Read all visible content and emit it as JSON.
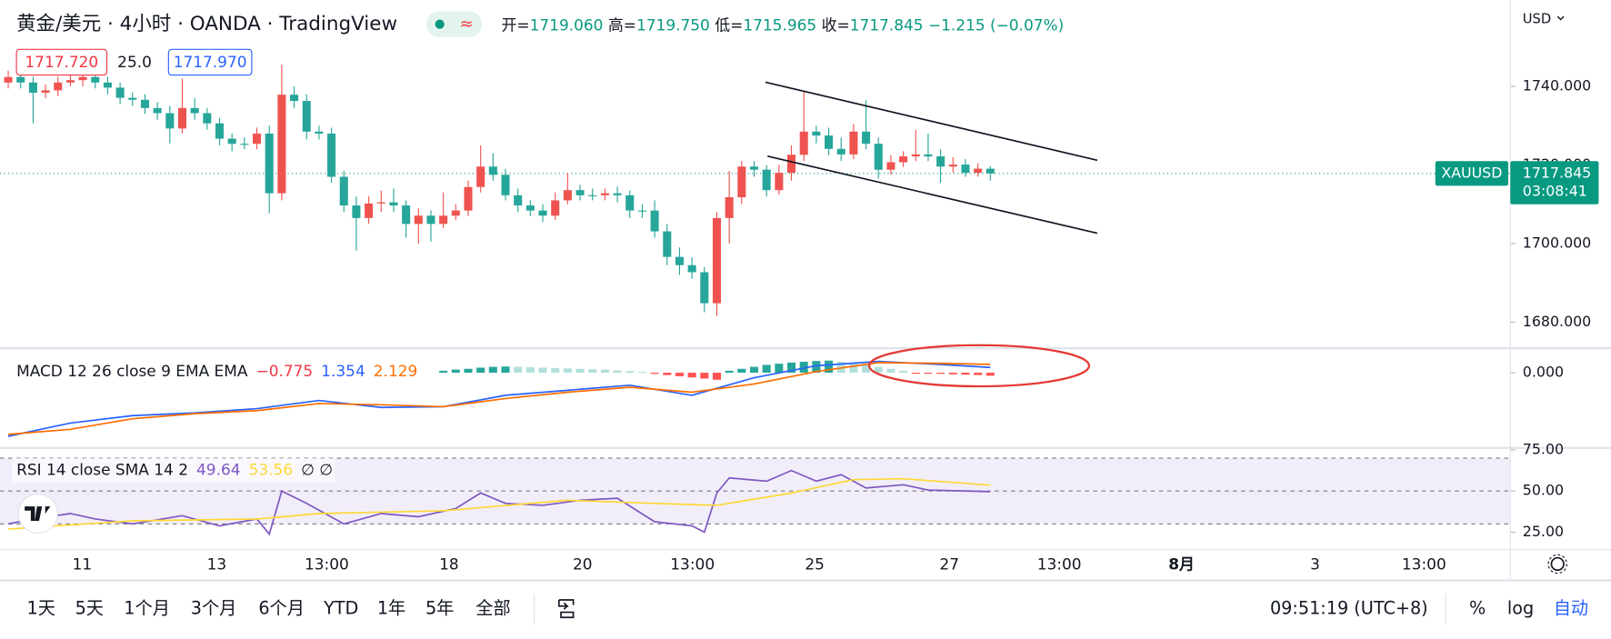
{
  "header": {
    "symbol": "黄金/美元 · 4小时 · OANDA · TradingView",
    "status_icon": "≈",
    "ohlc": [
      {
        "label": "开=",
        "value": "1719.060"
      },
      {
        "label": "高=",
        "value": "1719.750"
      },
      {
        "label": "低=",
        "value": "1715.965"
      },
      {
        "label": "收=",
        "value": "1717.845"
      }
    ],
    "change": "−1.215 (−0.07%)",
    "bid": "1717.720",
    "spread": "25.0",
    "ask": "1717.970",
    "currency": "USD"
  },
  "chart_data": [
    {
      "type": "candlestick",
      "open": [
        1741.0,
        1742.4,
        1741.0,
        1738.4,
        1739.0,
        1741.0,
        1741.6,
        1742.4,
        1741.0,
        1739.7,
        1737.1,
        1736.6,
        1734.5,
        1733.2,
        1729.3,
        1734.5,
        1733.2,
        1730.6,
        1726.7,
        1725.4,
        1725.4,
        1728.0,
        1712.8,
        1737.9,
        1736.3,
        1728.5,
        1728.0,
        1717.0,
        1709.7,
        1706.5,
        1710.2,
        1710.5,
        1709.7,
        1705.0,
        1707.1,
        1705.0,
        1707.1,
        1708.4,
        1714.4,
        1719.6,
        1717.5,
        1712.3,
        1709.7,
        1708.4,
        1707.1,
        1711.0,
        1713.6,
        1712.3,
        1712.3,
        1712.8,
        1712.3,
        1708.4,
        1708.4,
        1703.1,
        1696.6,
        1694.5,
        1692.7,
        1684.8,
        1706.5,
        1711.8,
        1719.6,
        1718.8,
        1713.6,
        1718.0,
        1722.6,
        1728.5,
        1727.5,
        1724.1,
        1722.7,
        1728.5,
        1725.4,
        1718.8,
        1720.7,
        1722.2,
        1722.7,
        1722.2,
        1719.6,
        1720.1,
        1718.0,
        1719.06
      ],
      "high": [
        1744,
        1744,
        1742.5,
        1740.5,
        1742.5,
        1746,
        1744,
        1744,
        1742.5,
        1741,
        1738.5,
        1738,
        1736,
        1735,
        1742,
        1737,
        1734.5,
        1732,
        1728,
        1727,
        1729.5,
        1730,
        1745.5,
        1740,
        1738,
        1730,
        1729.5,
        1718.5,
        1712,
        1712,
        1713.5,
        1714,
        1711,
        1709,
        1708.5,
        1713,
        1710,
        1716,
        1725,
        1723,
        1719,
        1714,
        1711,
        1710,
        1713,
        1718,
        1715,
        1714,
        1714,
        1714.5,
        1713.5,
        1710,
        1711,
        1705,
        1699,
        1696.5,
        1694,
        1708,
        1718.5,
        1721,
        1721,
        1720,
        1720,
        1725,
        1739,
        1730,
        1729.5,
        1727,
        1730.5,
        1736.5,
        1727,
        1722.5,
        1723.5,
        1729,
        1728,
        1724,
        1722,
        1721.5,
        1720.5,
        1719.75
      ],
      "low": [
        1739.5,
        1739.5,
        1730.6,
        1737,
        1737.5,
        1740,
        1740,
        1739.5,
        1738,
        1735.5,
        1735,
        1733,
        1731.5,
        1725.5,
        1728,
        1731.5,
        1729,
        1725,
        1723.5,
        1724,
        1724,
        1707.7,
        1711,
        1734.5,
        1726.5,
        1726.5,
        1715.5,
        1708,
        1698.2,
        1705,
        1708,
        1708,
        1701.5,
        1700,
        1700.5,
        1704,
        1706,
        1707,
        1713,
        1716,
        1711,
        1708,
        1707,
        1705.5,
        1706,
        1710,
        1711,
        1711,
        1711,
        1710.5,
        1706.5,
        1706.5,
        1701.5,
        1694.5,
        1692,
        1691,
        1682.5,
        1681.5,
        1700,
        1710,
        1717,
        1712,
        1712.5,
        1716,
        1721,
        1725.5,
        1722.5,
        1721,
        1721.5,
        1724,
        1716.5,
        1717.5,
        1719.5,
        1721,
        1721,
        1715.5,
        1718,
        1717,
        1717,
        1715.965
      ],
      "close": [
        1742.4,
        1741.0,
        1738.4,
        1739.0,
        1741.0,
        1741.6,
        1742.4,
        1741.0,
        1739.7,
        1737.1,
        1736.6,
        1734.5,
        1733.2,
        1729.3,
        1734.5,
        1733.2,
        1730.6,
        1726.7,
        1725.4,
        1725.4,
        1728.0,
        1712.8,
        1737.9,
        1736.3,
        1728.5,
        1728.0,
        1717.0,
        1709.7,
        1706.5,
        1710.2,
        1710.5,
        1709.7,
        1705.0,
        1707.1,
        1705.0,
        1707.1,
        1708.4,
        1714.4,
        1719.6,
        1717.5,
        1712.3,
        1709.7,
        1708.4,
        1707.1,
        1711.0,
        1713.6,
        1712.3,
        1712.3,
        1712.8,
        1712.3,
        1708.4,
        1708.4,
        1703.1,
        1696.6,
        1694.5,
        1692.7,
        1684.8,
        1706.5,
        1711.8,
        1719.6,
        1718.8,
        1713.6,
        1718.0,
        1722.6,
        1728.5,
        1727.5,
        1724.1,
        1722.7,
        1728.5,
        1725.4,
        1718.8,
        1720.7,
        1722.2,
        1722.7,
        1722.2,
        1719.6,
        1720.1,
        1718.0,
        1719.06,
        1717.845
      ],
      "up_color": "#ef5350",
      "down_color": "#26a69a",
      "ylim": [
        1673.6,
        1762
      ],
      "yticks": [
        {
          "value": 1740,
          "label": "1740.000"
        },
        {
          "value": 1720,
          "label": "1720.000"
        },
        {
          "value": 1700,
          "label": "1700.000"
        },
        {
          "value": 1680,
          "label": "1680.000"
        }
      ],
      "last_label": "XAUUSD",
      "last_price": "1717.845",
      "countdown": "03:08:41",
      "last_color": "#089981"
    },
    {
      "type": "macd",
      "legend": "MACD 12 26 close 9 EMA EMA",
      "legend_values": [
        "−0.775",
        "1.354",
        "2.129"
      ],
      "legend_colors": [
        "#f23645",
        "#2962ff",
        "#ff6d00"
      ],
      "ylim": [
        -19,
        6
      ],
      "yticks": [
        {
          "value": 0,
          "label": "0.000"
        }
      ],
      "histogram": {
        "x": [
          35,
          36,
          37,
          38,
          39,
          40,
          41,
          42,
          43,
          44,
          45,
          46,
          47,
          48,
          49,
          50,
          51,
          52,
          53,
          54,
          55,
          56,
          57,
          58,
          59,
          60,
          61,
          62,
          63,
          64,
          65,
          66,
          67,
          68,
          69,
          70,
          71,
          72,
          73,
          74,
          75,
          76,
          77,
          78,
          79
        ],
        "values": [
          0.5,
          0.8,
          1.0,
          1.3,
          1.5,
          1.6,
          1.5,
          1.4,
          1.3,
          1.2,
          1.1,
          1.0,
          0.9,
          0.8,
          0.6,
          0.4,
          0.2,
          -0.3,
          -0.6,
          -0.9,
          -1.2,
          -1.5,
          -1.8,
          0.5,
          1.0,
          1.5,
          2.0,
          2.3,
          2.6,
          2.8,
          3.0,
          3.1,
          2.8,
          2.4,
          2.0,
          1.5,
          1.0,
          0.5,
          -0.1,
          -0.2,
          -0.3,
          -0.4,
          -0.5,
          -0.6,
          -0.775
        ],
        "colors": [
          "#26a69a",
          "#b2dfdb",
          "#ff5252",
          "#ffcdd2"
        ]
      },
      "series": [
        {
          "color": "#2962ff",
          "x": [
            0,
            5,
            10,
            15,
            20,
            25,
            30,
            35,
            40,
            45,
            50,
            55,
            60,
            65,
            70,
            75,
            79
          ],
          "values": [
            -16.3,
            -12.9,
            -11,
            -10.3,
            -9.2,
            -7.1,
            -8.9,
            -8.7,
            -5.8,
            -4.5,
            -3.2,
            -5.8,
            -1.3,
            1.8,
            2.9,
            2.1,
            1.354
          ]
        },
        {
          "color": "#ff6d00",
          "x": [
            0,
            5,
            10,
            15,
            20,
            25,
            30,
            35,
            40,
            45,
            50,
            55,
            60,
            65,
            70,
            75,
            79
          ],
          "values": [
            -15.8,
            -14.5,
            -11.8,
            -10.5,
            -9.7,
            -7.9,
            -8.2,
            -8.7,
            -6.6,
            -5,
            -3.7,
            -5,
            -2.9,
            0.3,
            2.6,
            2.4,
            2.129
          ]
        }
      ]
    },
    {
      "type": "rsi",
      "legend": "RSI 14 close SMA 14 2",
      "legend_values": [
        "49.64",
        "53.56",
        "∅ ∅"
      ],
      "legend_colors": [
        "#7e57c2",
        "#fdd835",
        "#131722"
      ],
      "ylim": [
        14.4,
        75.6
      ],
      "yticks": [
        {
          "value": 75,
          "label": "75.00"
        },
        {
          "value": 50,
          "label": "50.00"
        },
        {
          "value": 25,
          "label": "25.00"
        }
      ],
      "bands": [
        70,
        50,
        30
      ],
      "band_fill": "#7e57c2",
      "series": [
        {
          "color": "#7e57c2",
          "x": [
            0,
            2,
            5,
            7,
            10,
            14,
            17,
            20,
            21,
            22,
            24,
            27,
            30,
            33,
            36,
            38,
            40,
            43,
            46,
            49,
            52,
            55,
            56,
            57,
            58,
            61,
            63,
            65,
            67,
            69,
            72,
            74,
            79
          ],
          "values": [
            30,
            33,
            36.3,
            33,
            30,
            35,
            28.8,
            33,
            23.8,
            50,
            42.5,
            30,
            36.3,
            34.4,
            39.4,
            48.8,
            42.5,
            41.3,
            44.4,
            45.6,
            31.3,
            28.8,
            25,
            48.8,
            58,
            56,
            62.5,
            56,
            60,
            51.9,
            53.8,
            50.6,
            49.64
          ]
        },
        {
          "color": "#fdd835",
          "x": [
            0,
            10,
            20,
            25,
            35,
            45,
            52,
            57,
            63,
            68,
            72,
            79
          ],
          "values": [
            26.9,
            31.9,
            33,
            36.3,
            38,
            44.4,
            42.5,
            41.3,
            48.8,
            56.9,
            57.5,
            53.56
          ]
        }
      ]
    }
  ],
  "time_axis": [
    "11",
    "13",
    "13:00",
    "18",
    "20",
    "13:00",
    "25",
    "27",
    "13:00",
    "8月",
    "3",
    "13:00"
  ],
  "toolbar": {
    "ranges": [
      "1天",
      "5天",
      "1个月",
      "3个月",
      "6个月",
      "YTD",
      "1年",
      "5年",
      "全部"
    ],
    "clock": "09:51:19 (UTC+8)",
    "options": [
      "%",
      "log",
      "自动"
    ]
  }
}
